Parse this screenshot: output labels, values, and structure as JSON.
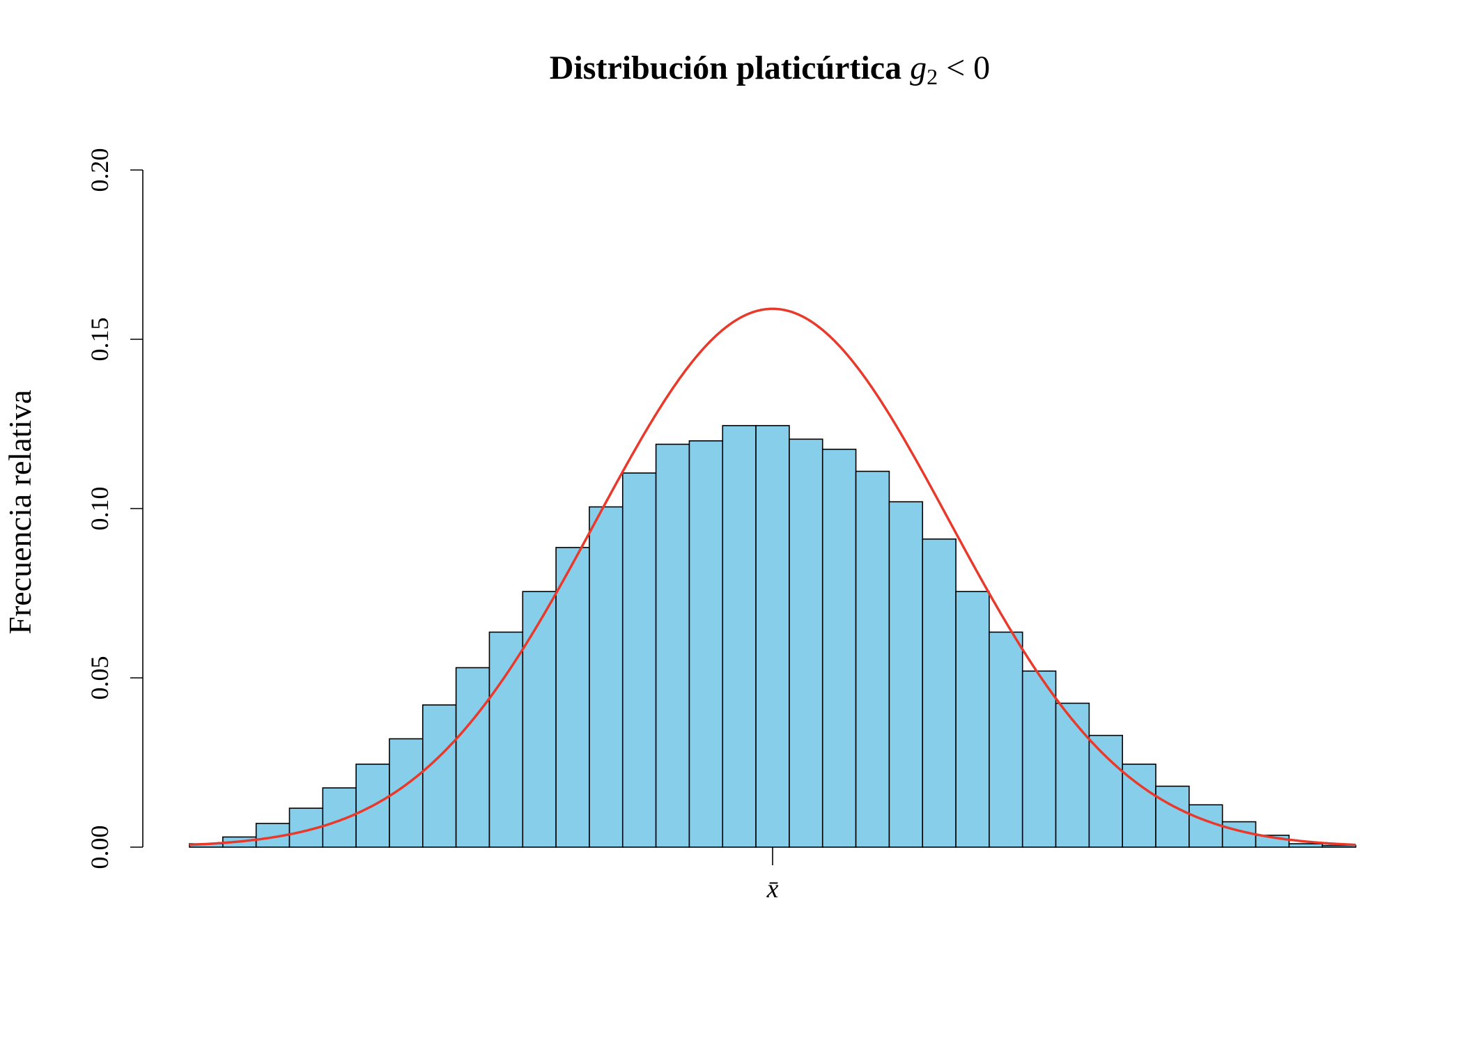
{
  "chart_data": {
    "type": "bar",
    "title": {
      "bold": "Distribución platicúrtica",
      "math_symbol": "g",
      "math_subscript": "2",
      "math_relation": " < 0"
    },
    "ylabel": "Frecuencia relativa",
    "xlabel": "",
    "ylim": [
      0,
      0.2
    ],
    "yticks": [
      "0.00",
      "0.05",
      "0.10",
      "0.15",
      "0.20"
    ],
    "x_tick_label": "x̄",
    "bar_color": "#87CEEB",
    "bar_edge_color": "#000000",
    "curve_color": "#E8392B",
    "bins": 35,
    "bin_values": [
      0.001,
      0.003,
      0.007,
      0.0115,
      0.0175,
      0.0245,
      0.032,
      0.042,
      0.053,
      0.0635,
      0.0755,
      0.0885,
      0.1005,
      0.1105,
      0.119,
      0.12,
      0.1245,
      0.1245,
      0.1205,
      0.1175,
      0.111,
      0.102,
      0.091,
      0.0755,
      0.0635,
      0.052,
      0.0425,
      0.033,
      0.0245,
      0.018,
      0.0125,
      0.0075,
      0.0035,
      0.001,
      0.0005
    ],
    "normal_curve": {
      "name": "",
      "peak": 0.159,
      "sd_in_bins": 5.3
    }
  }
}
